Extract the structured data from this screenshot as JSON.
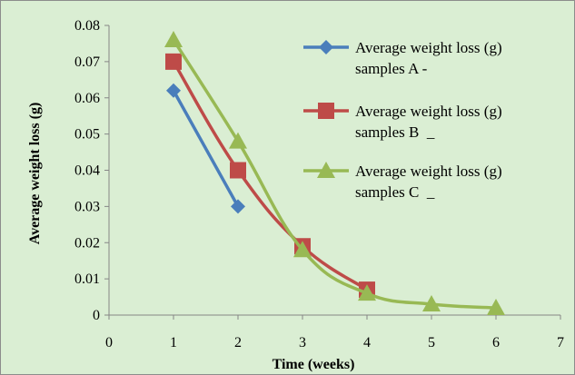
{
  "chart_data": {
    "type": "line",
    "title": "",
    "xlabel": "Time (weeks)",
    "ylabel": "Average weight loss (g)",
    "xlim": [
      0,
      7
    ],
    "ylim": [
      0,
      0.08
    ],
    "x_ticks": [
      "0",
      "1",
      "2",
      "3",
      "4",
      "5",
      "6",
      "7"
    ],
    "y_ticks": [
      "0",
      "0.01",
      "0.02",
      "0.03",
      "0.04",
      "0.05",
      "0.06",
      "0.07",
      "0.08"
    ],
    "grid": false,
    "legend_position": "top-right",
    "series": [
      {
        "name": "Average weight loss (g) samples A -",
        "legend_lines": [
          "Average weight loss (g)",
          "samples A -"
        ],
        "color": "#4a7ebb",
        "marker": "diamond",
        "smooth": false,
        "points": [
          [
            1,
            0.062
          ],
          [
            2,
            0.03
          ]
        ]
      },
      {
        "name": "Average weight loss (g) samples B _",
        "legend_lines": [
          "Average weight loss (g)",
          "samples B  _"
        ],
        "color": "#be4b48",
        "marker": "square",
        "smooth": true,
        "points": [
          [
            1,
            0.07
          ],
          [
            2,
            0.04
          ],
          [
            3,
            0.019
          ],
          [
            4,
            0.007
          ]
        ]
      },
      {
        "name": "Average weight loss (g) samples C _",
        "legend_lines": [
          "Average weight loss (g)",
          "samples C  _"
        ],
        "color": "#98b954",
        "marker": "triangle",
        "smooth": true,
        "points": [
          [
            1,
            0.076
          ],
          [
            2,
            0.048
          ],
          [
            3,
            0.018
          ],
          [
            4,
            0.006
          ],
          [
            5,
            0.003
          ],
          [
            6,
            0.002
          ]
        ]
      }
    ]
  }
}
